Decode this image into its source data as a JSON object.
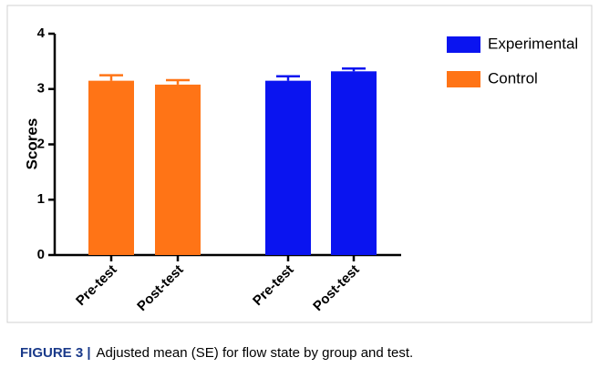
{
  "chart_data": {
    "type": "bar",
    "y_label": "Scores",
    "categories": [
      "Pre-test",
      "Post-test",
      "Pre-test",
      "Post-test"
    ],
    "series": [
      {
        "name": "Experimental",
        "color": "#0a14f0",
        "values": [
          null,
          null,
          3.15,
          3.32
        ],
        "errors": [
          null,
          null,
          0.08,
          0.05
        ]
      },
      {
        "name": "Control",
        "color": "#ff7416",
        "values": [
          3.15,
          3.08,
          null,
          null
        ],
        "errors": [
          0.1,
          0.08,
          null,
          null
        ]
      }
    ],
    "ylim": [
      0,
      4
    ],
    "yticks": [
      0,
      1,
      2,
      3,
      4
    ]
  },
  "caption": {
    "label": "FIGURE 3 |",
    "text": "Adjusted mean (SE) for flow state by group and test."
  }
}
